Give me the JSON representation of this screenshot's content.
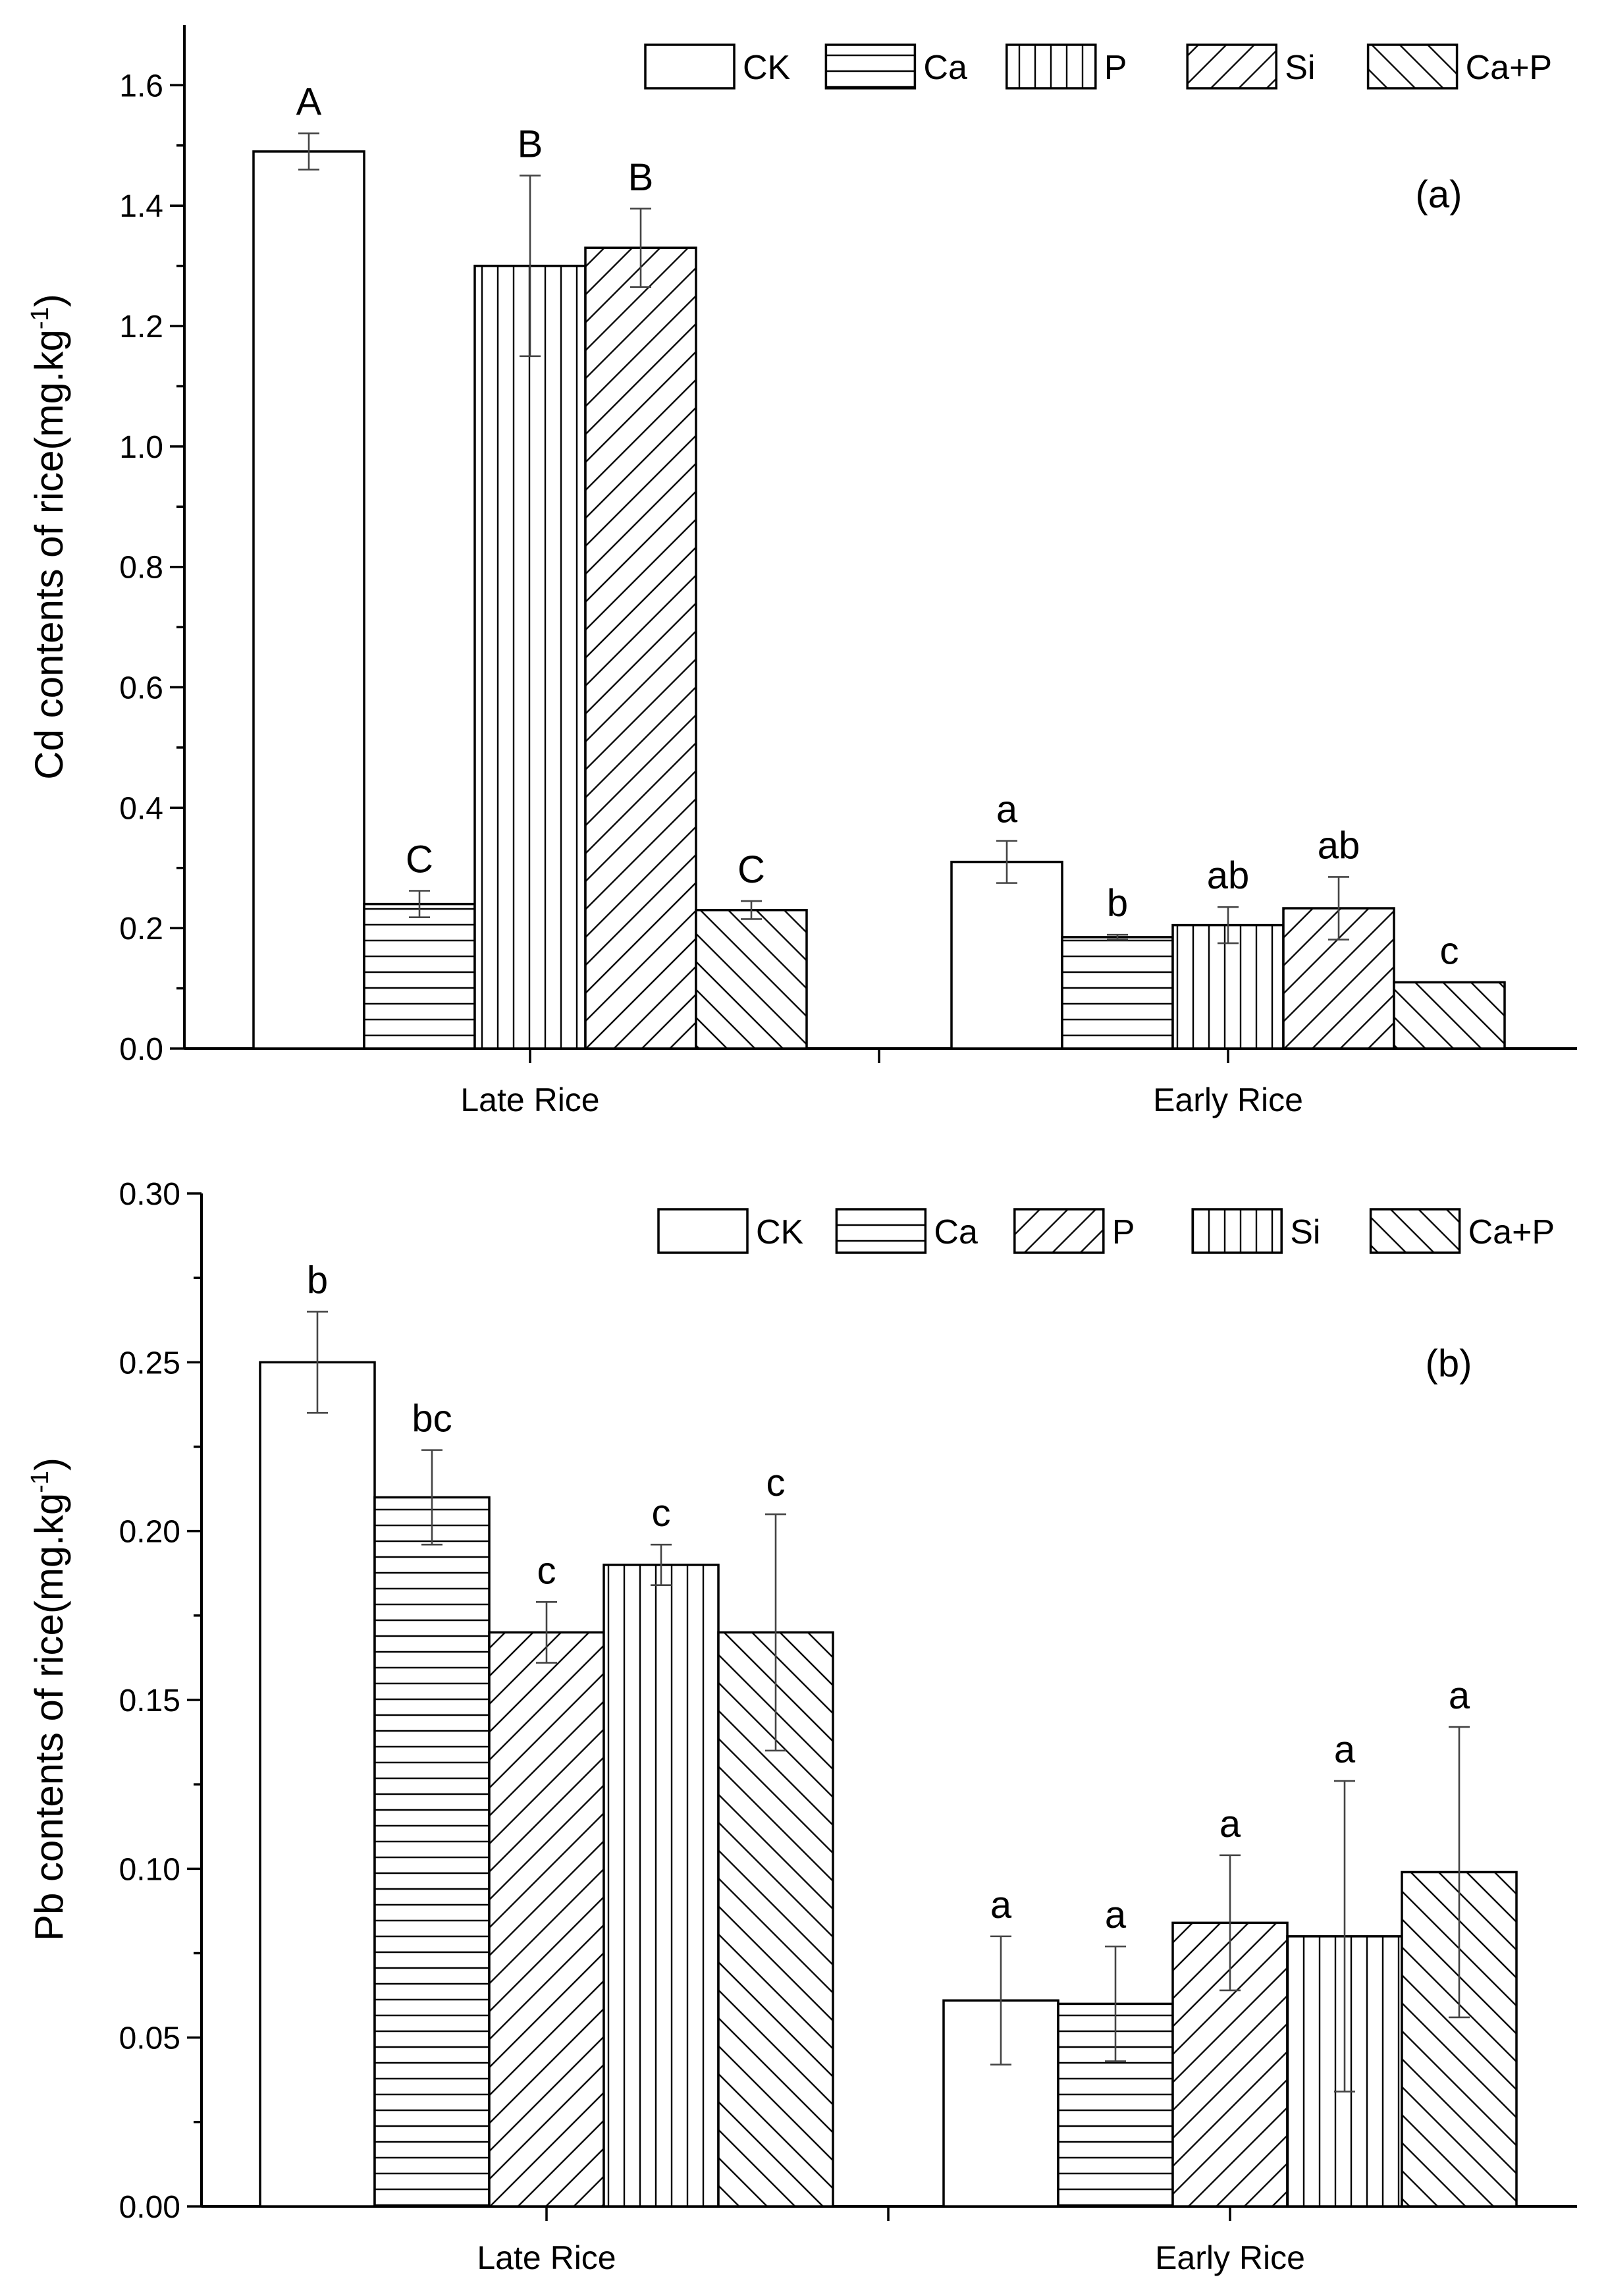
{
  "chart_data": [
    {
      "type": "bar",
      "panel": "(a)",
      "ylabel": "Cd contents of rice(mg.kg",
      "ylabel_sup": "-1",
      "ylabel_close": ")",
      "ylim": [
        0,
        1.7
      ],
      "yticks": [
        0.0,
        0.2,
        0.4,
        0.6,
        0.8,
        1.0,
        1.2,
        1.4,
        1.6
      ],
      "ytick_labels": [
        "0.0",
        "0.2",
        "0.4",
        "0.6",
        "0.8",
        "1.0",
        "1.2",
        "1.4",
        "1.6"
      ],
      "categories": [
        "Late Rice",
        "Early Rice"
      ],
      "legend": [
        "CK",
        "Ca",
        "P",
        "Si",
        "Ca+P"
      ],
      "legend_position": "top-right",
      "series": [
        {
          "name": "CK",
          "pattern": "none",
          "values": [
            1.49,
            0.31
          ],
          "errors": [
            0.03,
            0.035
          ],
          "sig": [
            "A",
            "a"
          ]
        },
        {
          "name": "Ca",
          "pattern": "horizontal",
          "values": [
            0.24,
            0.185
          ],
          "errors": [
            0.022,
            0.004
          ],
          "sig": [
            "C",
            "b"
          ]
        },
        {
          "name": "P",
          "pattern": "vertical",
          "values": [
            1.3,
            0.205
          ],
          "errors": [
            0.15,
            0.03
          ],
          "sig": [
            "B",
            "ab"
          ]
        },
        {
          "name": "Si",
          "pattern": "diag-up",
          "values": [
            1.33,
            0.233
          ],
          "errors": [
            0.065,
            0.052
          ],
          "sig": [
            "B",
            "ab"
          ]
        },
        {
          "name": "Ca+P",
          "pattern": "diag-down",
          "values": [
            0.23,
            0.11
          ],
          "errors": [
            0.015,
            0.0
          ],
          "sig": [
            "C",
            "c"
          ]
        }
      ]
    },
    {
      "type": "bar",
      "panel": "(b)",
      "ylabel": "Pb contents of rice(mg.kg",
      "ylabel_sup": "-1",
      "ylabel_close": ")",
      "ylim": [
        0,
        0.3
      ],
      "yticks": [
        0.0,
        0.05,
        0.1,
        0.15,
        0.2,
        0.25,
        0.3
      ],
      "ytick_labels": [
        "0.00",
        "0.05",
        "0.10",
        "0.15",
        "0.20",
        "0.25",
        "0.30"
      ],
      "categories": [
        "Late Rice",
        "Early Rice"
      ],
      "legend": [
        "CK",
        "Ca",
        "P",
        "Si",
        "Ca+P"
      ],
      "legend_position": "top-right",
      "series": [
        {
          "name": "CK",
          "pattern": "none",
          "values": [
            0.25,
            0.061
          ],
          "errors": [
            0.015,
            0.019
          ],
          "sig": [
            "b",
            "a"
          ]
        },
        {
          "name": "Ca",
          "pattern": "horizontal",
          "values": [
            0.21,
            0.06
          ],
          "errors": [
            0.014,
            0.017
          ],
          "sig": [
            "bc",
            "a"
          ]
        },
        {
          "name": "P",
          "pattern": "diag-up",
          "values": [
            0.17,
            0.084
          ],
          "errors": [
            0.009,
            0.02
          ],
          "sig": [
            "c",
            "a"
          ]
        },
        {
          "name": "Si",
          "pattern": "vertical",
          "values": [
            0.19,
            0.08
          ],
          "errors": [
            0.006,
            0.046
          ],
          "sig": [
            "c",
            "a"
          ]
        },
        {
          "name": "Ca+P",
          "pattern": "diag-down",
          "values": [
            0.17,
            0.099
          ],
          "errors": [
            0.035,
            0.043
          ],
          "sig": [
            "c",
            "a"
          ]
        }
      ]
    }
  ]
}
